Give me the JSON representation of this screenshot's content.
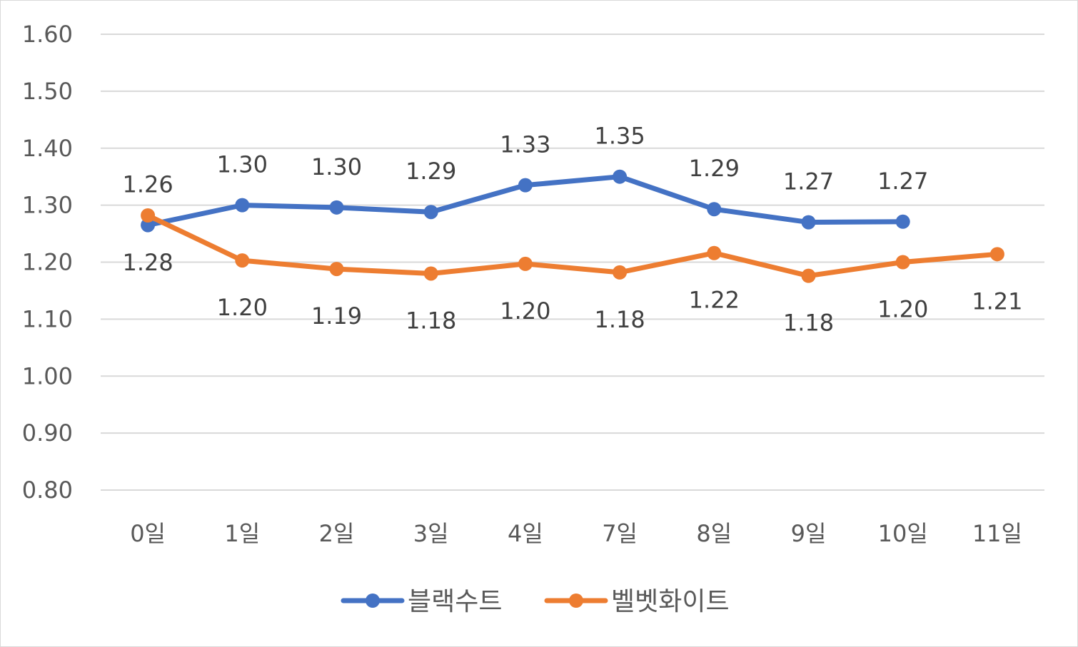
{
  "chart_data": {
    "type": "line",
    "title": "",
    "xlabel": "",
    "ylabel": "",
    "categories": [
      "0일",
      "1일",
      "2일",
      "3일",
      "4일",
      "7일",
      "8일",
      "9일",
      "10일",
      "11일"
    ],
    "ylim": [
      0.8,
      1.6
    ],
    "yticks": [
      "0.80",
      "0.90",
      "1.00",
      "1.10",
      "1.20",
      "1.30",
      "1.40",
      "1.50",
      "1.60"
    ],
    "grid": true,
    "legend_position": "bottom",
    "series": [
      {
        "name": "블랙수트",
        "color": "#4472C4",
        "values": [
          1.265,
          1.3,
          1.296,
          1.288,
          1.335,
          1.35,
          1.293,
          1.27,
          1.271,
          null
        ],
        "labels": [
          "1.26",
          "1.30",
          "1.30",
          "1.29",
          "1.33",
          "1.35",
          "1.29",
          "1.27",
          "1.27",
          null
        ],
        "label_position": "above"
      },
      {
        "name": "벨벳화이트",
        "color": "#ED7D31",
        "values": [
          1.282,
          1.203,
          1.188,
          1.18,
          1.197,
          1.182,
          1.216,
          1.176,
          1.2,
          1.214
        ],
        "labels": [
          "1.28",
          "1.20",
          "1.19",
          "1.18",
          "1.20",
          "1.18",
          "1.22",
          "1.18",
          "1.20",
          "1.21"
        ],
        "label_position": "below"
      }
    ]
  }
}
